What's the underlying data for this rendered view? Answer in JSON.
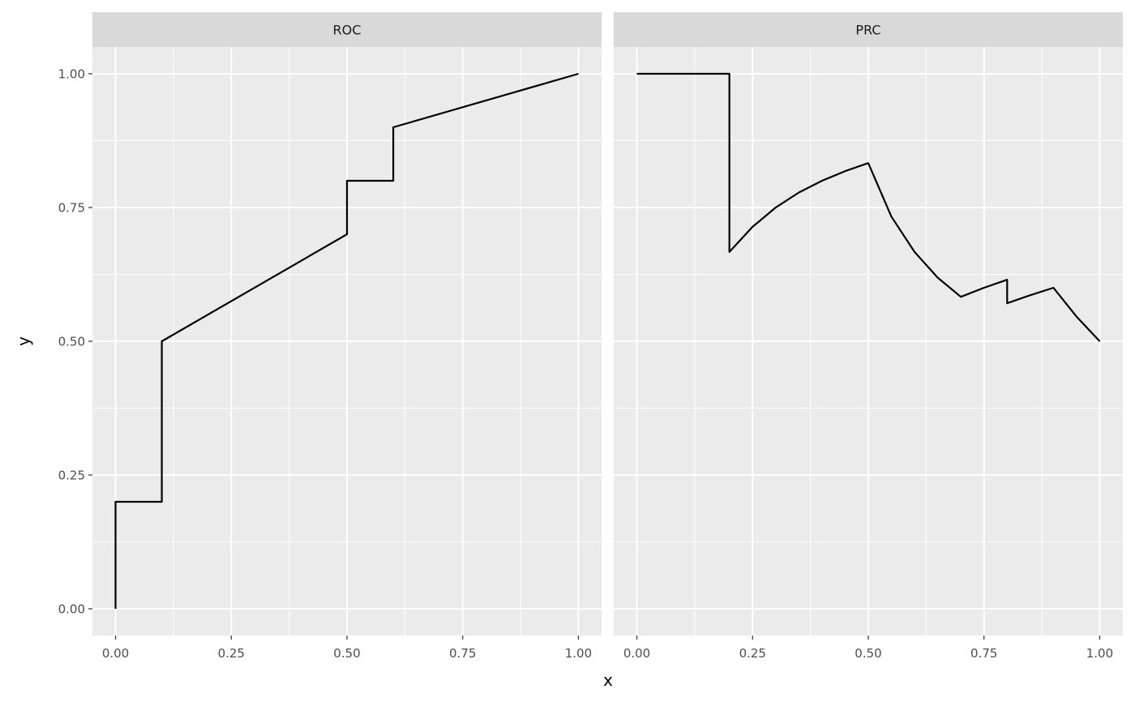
{
  "chart_data": {
    "type": "line",
    "xlabel": "x",
    "ylabel": "y",
    "xlim": [
      -0.05,
      1.05
    ],
    "ylim": [
      -0.05,
      1.05
    ],
    "x_breaks": [
      0,
      0.25,
      0.5,
      0.75,
      1
    ],
    "x_tick_labels": [
      "0.00",
      "0.25",
      "0.50",
      "0.75",
      "1.00"
    ],
    "y_breaks": [
      0,
      0.25,
      0.5,
      0.75,
      1
    ],
    "y_tick_labels": [
      "0.00",
      "0.25",
      "0.50",
      "0.75",
      "1.00"
    ],
    "grid": true,
    "colors": {
      "panel_background": "#ebebeb",
      "strip_background": "#d9d9d9",
      "grid_line": "#ffffff",
      "data_line": "#000000"
    },
    "panels": [
      {
        "label": "ROC",
        "x": [
          0,
          0,
          0.1,
          0.1,
          0.5,
          0.5,
          0.6,
          0.6,
          1.0
        ],
        "y": [
          0,
          0.2,
          0.2,
          0.5,
          0.7,
          0.8,
          0.8,
          0.9,
          1.0
        ]
      },
      {
        "label": "PRC",
        "x": [
          0,
          0.2,
          0.2,
          0.25,
          0.3,
          0.35,
          0.4,
          0.45,
          0.5,
          0.55,
          0.6,
          0.65,
          0.7,
          0.75,
          0.8,
          0.8,
          0.85,
          0.9,
          0.95,
          1.0
        ],
        "y": [
          1.0,
          1.0,
          0.667,
          0.714,
          0.75,
          0.778,
          0.8,
          0.818,
          0.833,
          0.733,
          0.667,
          0.619,
          0.583,
          0.6,
          0.615,
          0.571,
          0.586,
          0.6,
          0.546,
          0.5
        ]
      }
    ]
  }
}
